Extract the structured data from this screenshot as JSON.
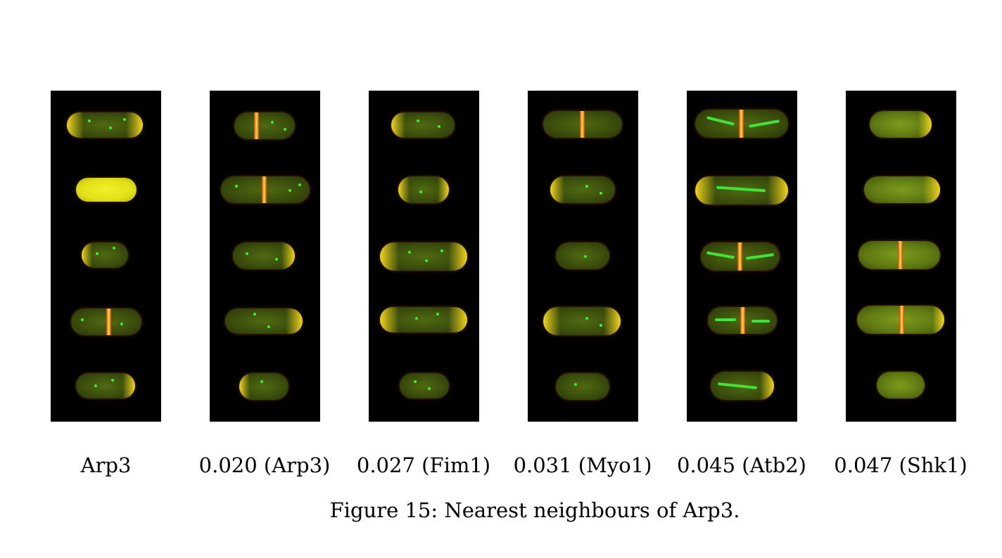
{
  "panels": [
    {
      "label": "Arp3"
    },
    {
      "label": "0.020 (Arp3)"
    },
    {
      "label": "0.027 (Fim1)"
    },
    {
      "label": "0.031 (Myo1)"
    },
    {
      "label": "0.045 (Atb2)"
    },
    {
      "label": "0.047 (Shk1)"
    }
  ],
  "caption": "Figure 15: Nearest neighbours of Arp3."
}
